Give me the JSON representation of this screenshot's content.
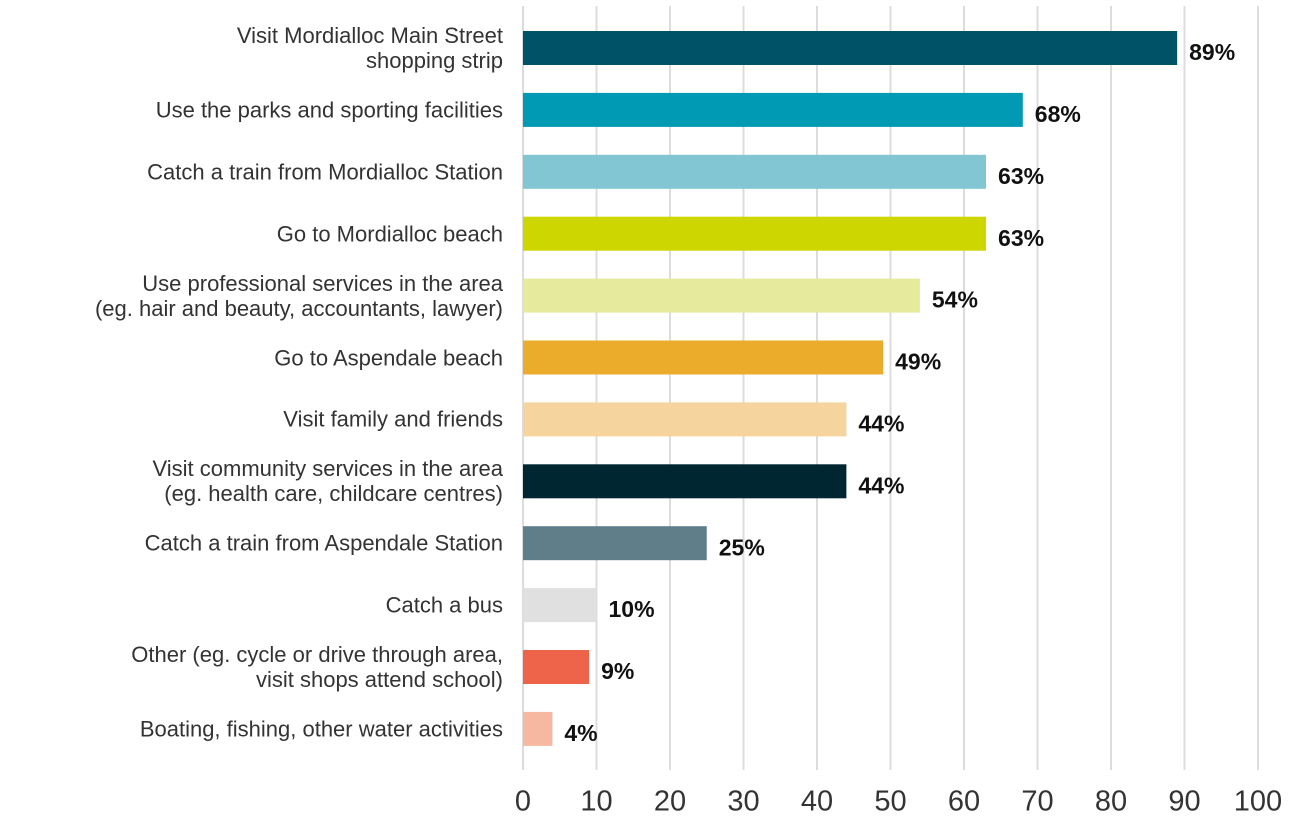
{
  "chart_data": {
    "type": "bar",
    "categories": [
      "Visit Mordialloc Main Street\nshopping strip",
      "Use the parks and sporting facilities",
      "Catch a train from Mordialloc Station",
      "Go to Mordialloc beach",
      "Use professional services in the area\n(eg. hair and beauty, accountants, lawyer)",
      "Go to Aspendale beach",
      "Visit family and friends",
      "Visit community services in the area\n(eg. health care, childcare centres)",
      "Catch a train from Aspendale Station",
      "Catch a bus",
      "Other (eg. cycle or drive through area,\nvisit shops attend school)",
      "Boating, fishing, other water activities"
    ],
    "values": [
      89,
      68,
      63,
      63,
      54,
      49,
      44,
      44,
      25,
      10,
      9,
      4
    ],
    "value_labels": [
      "89%",
      "68%",
      "63%",
      "63%",
      "54%",
      "49%",
      "44%",
      "44%",
      "25%",
      "10%",
      "9%",
      "4%"
    ],
    "colors": [
      "#005366",
      "#009ab5",
      "#82c6d3",
      "#cdd600",
      "#e6ea9c",
      "#ecac2b",
      "#f5d59d",
      "#002632",
      "#5f7e8a",
      "#e0e0e0",
      "#ed644a",
      "#f6b8a1"
    ],
    "xlim": [
      0,
      100
    ],
    "xticks": [
      0,
      10,
      20,
      30,
      40,
      50,
      60,
      70,
      80,
      90,
      100
    ],
    "grid": true
  }
}
